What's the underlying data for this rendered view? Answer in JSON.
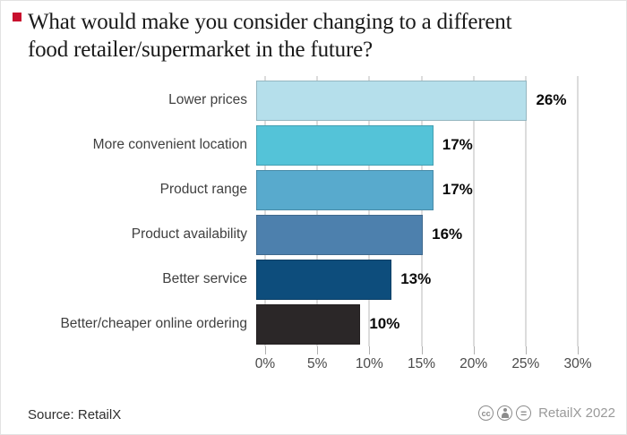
{
  "title": {
    "line1": "What would make you consider changing to a different",
    "line2": "food retailer/supermarket in the future?"
  },
  "accent_red": "#c8102e",
  "chart_data": {
    "type": "bar",
    "orientation": "horizontal",
    "title": "What would make you consider changing to a different food retailer/supermarket in the future?",
    "categories": [
      "Lower prices",
      "More convenient location",
      "Product range",
      "Product availability",
      "Better service",
      "Better/cheaper online ordering"
    ],
    "values": [
      26,
      17,
      17,
      16,
      13,
      10
    ],
    "value_labels": [
      "26%",
      "17%",
      "17%",
      "16%",
      "13%",
      "10%"
    ],
    "colors": [
      "#b5dfeb",
      "#54c3d8",
      "#58aacd",
      "#4d80ad",
      "#0d4d7c",
      "#2b2728"
    ],
    "xlim": [
      0,
      30
    ],
    "x_ticks": [
      "0%",
      "5%",
      "10%",
      "15%",
      "20%",
      "25%",
      "30%"
    ],
    "grid": "vertical-gridlines-every-5pct",
    "legend": "none"
  },
  "footer": {
    "source": "Source: RetailX",
    "license": {
      "icons": [
        "cc-icon",
        "attribution-person-icon",
        "equals-icon"
      ],
      "cc_label": "cc",
      "equals_label": "=",
      "credit": "RetailX 2022"
    }
  }
}
